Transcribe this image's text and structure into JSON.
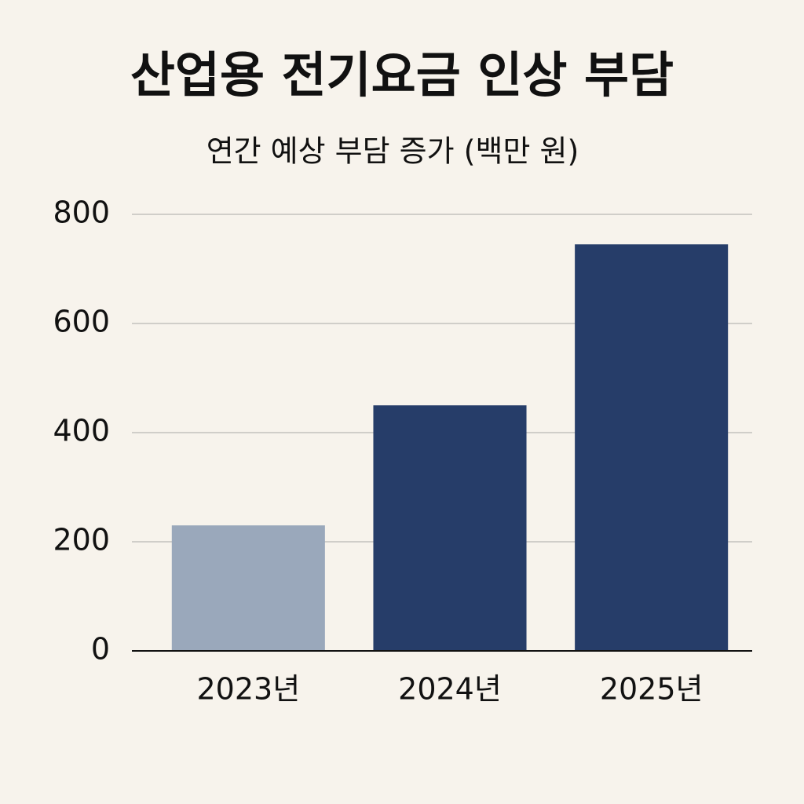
{
  "chart_data": {
    "type": "bar",
    "title": "산업용 전기요금 인상 부담",
    "subtitle": "연간 예상 부담 증가 (백만 원)",
    "categories": [
      "2023년",
      "2024년",
      "2025년"
    ],
    "values": [
      230,
      450,
      745
    ],
    "colors": [
      "#9aa8bb",
      "#263d69",
      "#263d69"
    ],
    "ylim": [
      0,
      800
    ],
    "yticks": [
      0,
      200,
      400,
      600,
      800
    ],
    "grid": true
  }
}
